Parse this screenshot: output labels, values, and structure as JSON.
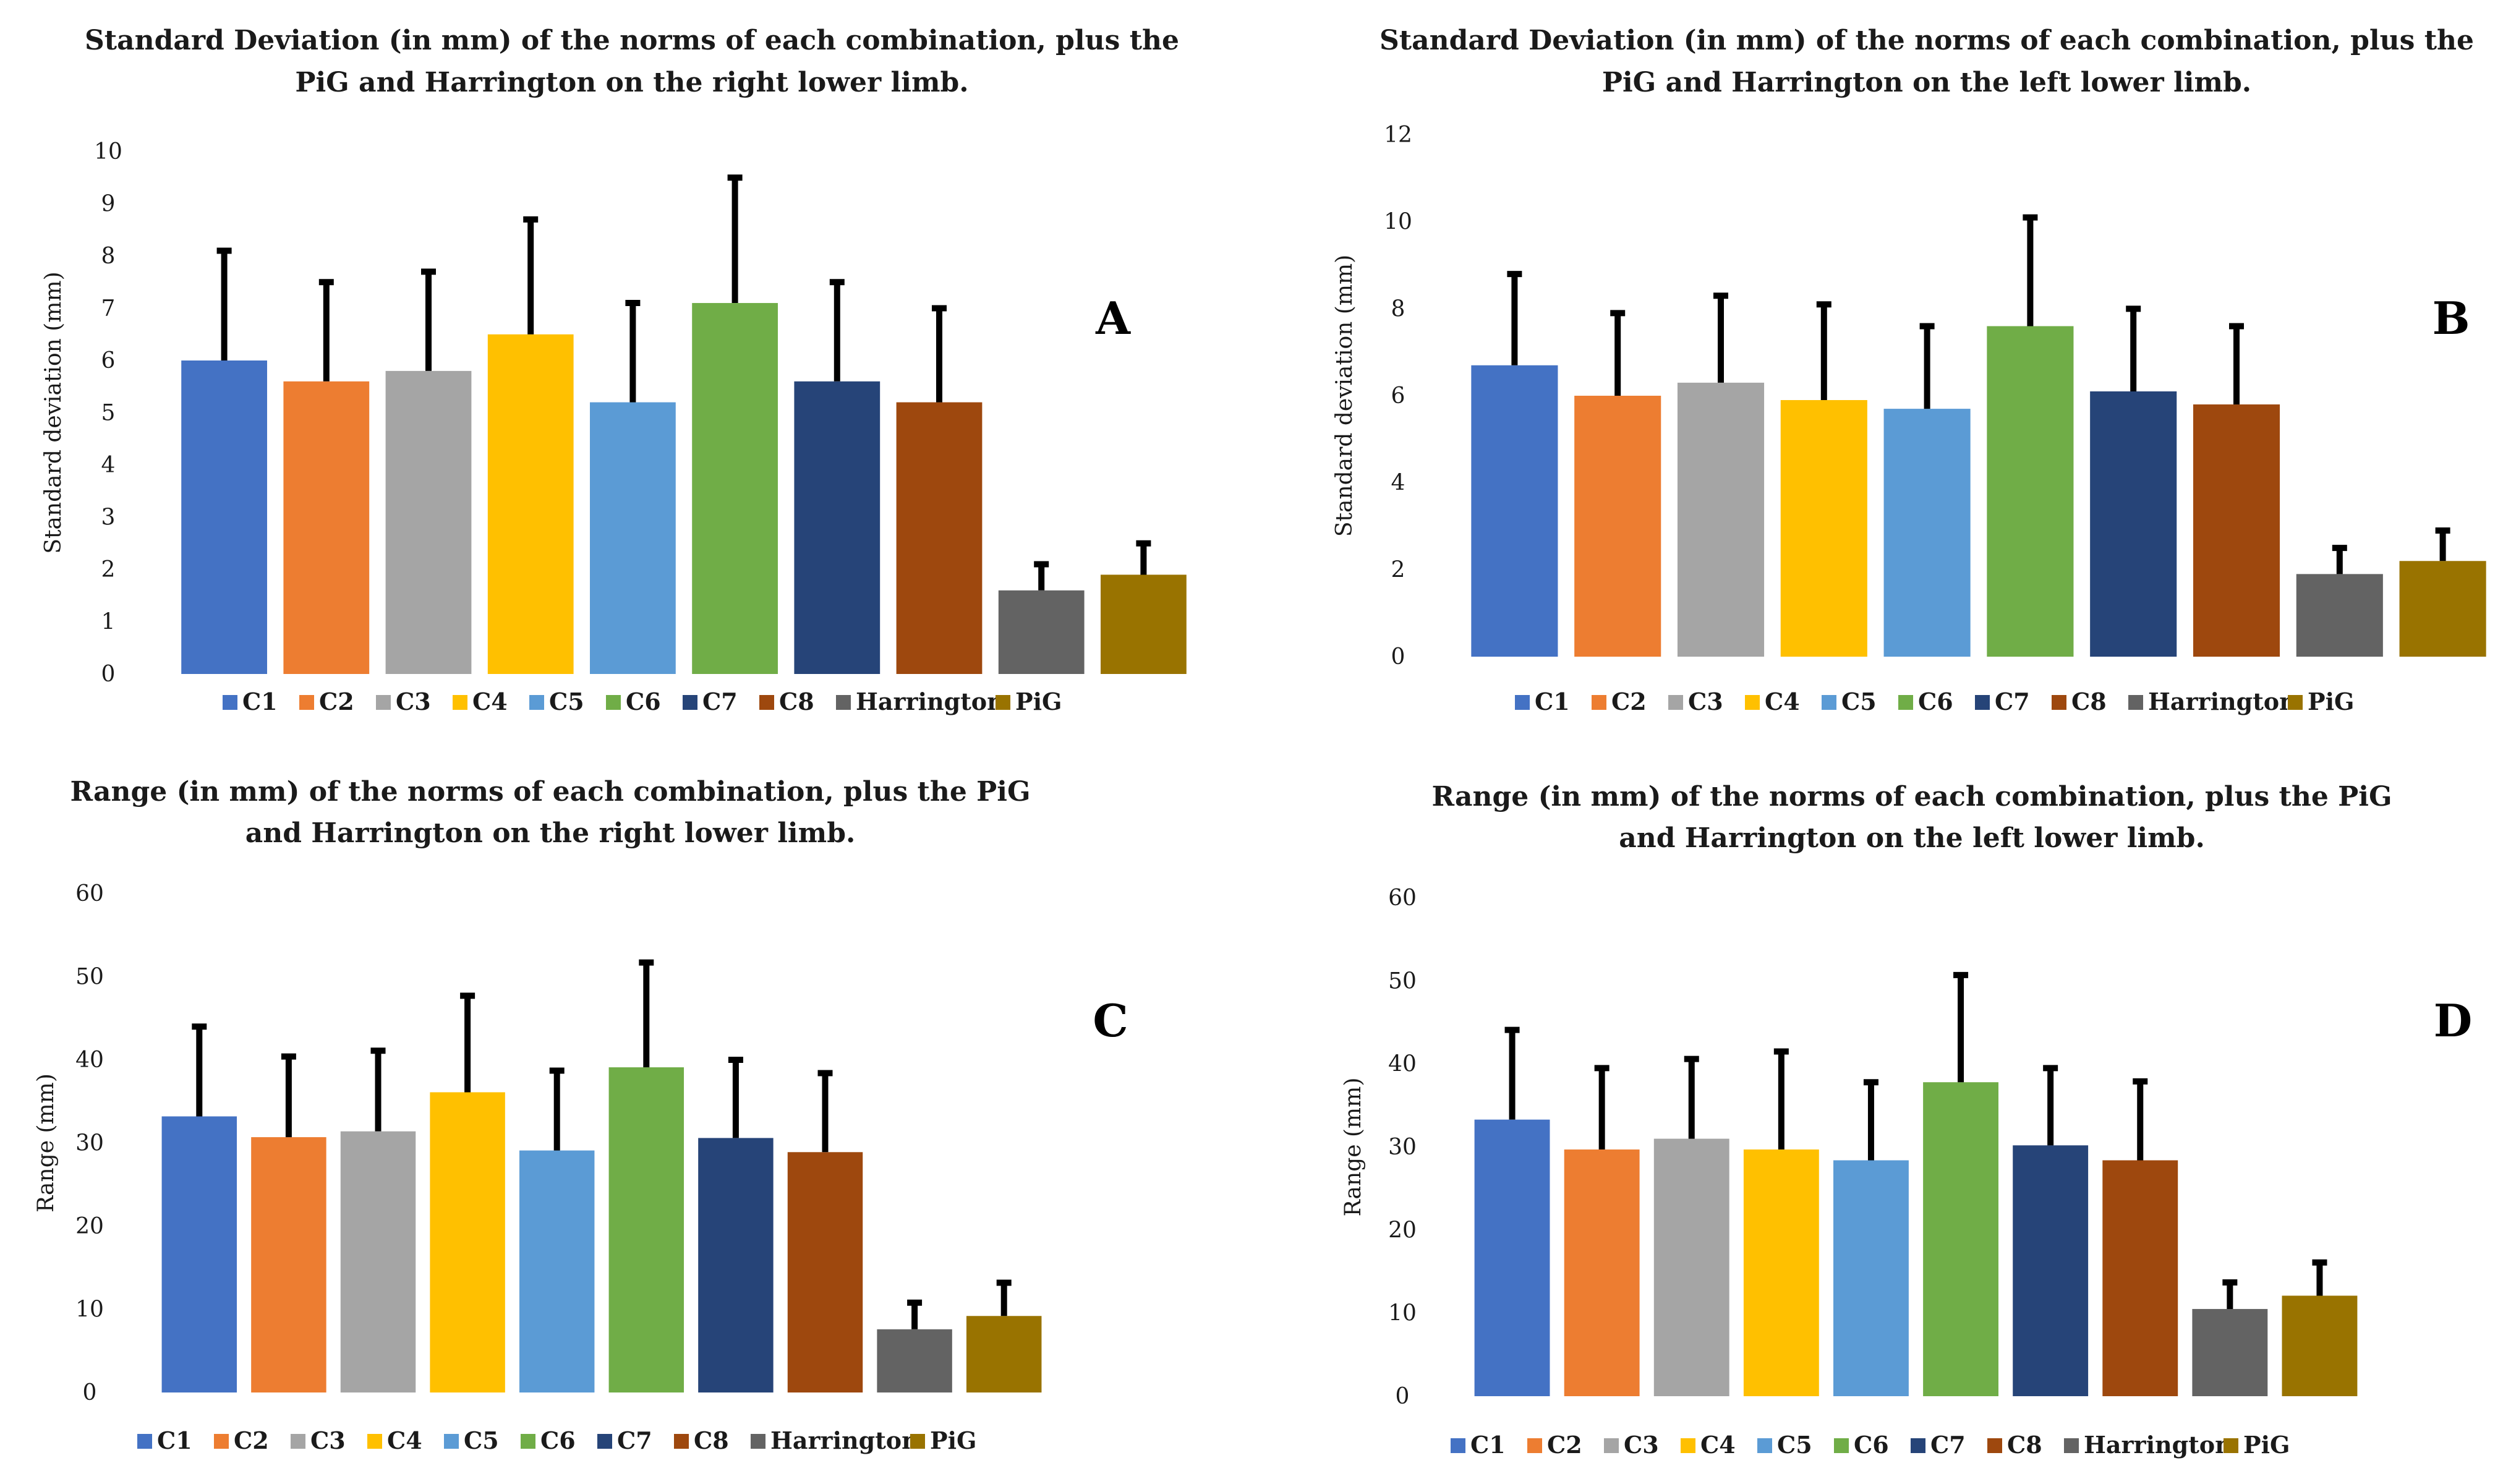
{
  "legend_labels": [
    "C1",
    "C2",
    "C3",
    "C4",
    "C5",
    "C6",
    "C7",
    "C8",
    "Harrington",
    "PiG"
  ],
  "colors": [
    "#4472C4",
    "#ED7D31",
    "#A5A5A5",
    "#FFC000",
    "#5B9BD5",
    "#70AD47",
    "#264478",
    "#9E480E",
    "#636363",
    "#997300"
  ],
  "chart_data": [
    {
      "id": "A",
      "type": "bar",
      "title_lines": [
        "Standard Deviation (in mm) of the norms of each combination, plus the",
        "PiG and Harrington on the right lower limb."
      ],
      "ylabel": "Standard deviation (mm)",
      "ylim": [
        0,
        10
      ],
      "yticks": [
        0,
        1,
        2,
        3,
        4,
        5,
        6,
        7,
        8,
        9,
        10
      ],
      "categories": [
        "C1",
        "C2",
        "C3",
        "C4",
        "C5",
        "C6",
        "C7",
        "C8",
        "Harrington",
        "PiG"
      ],
      "values": [
        6.0,
        5.6,
        5.8,
        6.5,
        5.2,
        7.1,
        5.6,
        5.2,
        1.6,
        1.9
      ],
      "error_plus": [
        2.1,
        1.9,
        1.9,
        2.2,
        1.9,
        2.4,
        1.9,
        1.8,
        0.5,
        0.6
      ],
      "letter": "A"
    },
    {
      "id": "B",
      "type": "bar",
      "title_lines": [
        "Standard Deviation (in mm) of the norms of each combination, plus the",
        "PiG and Harrington on the left lower limb."
      ],
      "ylabel": "Standard deviation (mm)",
      "ylim": [
        0,
        12
      ],
      "yticks": [
        0,
        2,
        4,
        6,
        8,
        10,
        12
      ],
      "categories": [
        "C1",
        "C2",
        "C3",
        "C4",
        "C5",
        "C6",
        "C7",
        "C8",
        "Harrington",
        "PiG"
      ],
      "values": [
        6.7,
        6.0,
        6.3,
        5.9,
        5.7,
        7.6,
        6.1,
        5.8,
        1.9,
        2.2
      ],
      "error_plus": [
        2.1,
        1.9,
        2.0,
        2.2,
        1.9,
        2.5,
        1.9,
        1.8,
        0.6,
        0.7
      ],
      "letter": "B"
    },
    {
      "id": "C",
      "type": "bar",
      "title_lines": [
        "Range (in mm) of the norms of each combination,  plus the PiG",
        "and Harrington on the right lower limb."
      ],
      "ylabel": "Range (mm)",
      "ylim": [
        0,
        60
      ],
      "yticks": [
        0,
        10,
        20,
        30,
        40,
        50,
        60
      ],
      "categories": [
        "C1",
        "C2",
        "C3",
        "C4",
        "C5",
        "C6",
        "C7",
        "C8",
        "Harrington",
        "PiG"
      ],
      "values": [
        33.2,
        30.7,
        31.4,
        36.1,
        29.1,
        39.1,
        30.6,
        28.9,
        7.6,
        9.2
      ],
      "error_plus": [
        10.8,
        9.7,
        9.7,
        11.6,
        9.6,
        12.6,
        9.4,
        9.5,
        3.2,
        4.0
      ],
      "letter": "C"
    },
    {
      "id": "D",
      "type": "bar",
      "title_lines": [
        "Range (in mm) of the norms of each combination, plus the PiG",
        "and Harrington on the left lower limb."
      ],
      "ylabel": "Range (mm)",
      "ylim": [
        0,
        60
      ],
      "yticks": [
        0,
        10,
        20,
        30,
        40,
        50,
        60
      ],
      "categories": [
        "C1",
        "C2",
        "C3",
        "C4",
        "C5",
        "C6",
        "C7",
        "C8",
        "Harrington",
        "PiG"
      ],
      "values": [
        33.3,
        29.7,
        31.0,
        29.7,
        28.4,
        37.8,
        30.2,
        28.4,
        10.5,
        12.1
      ],
      "error_plus": [
        10.8,
        9.8,
        9.6,
        11.8,
        9.4,
        12.9,
        9.3,
        9.5,
        3.2,
        4.0
      ],
      "letter": "D"
    }
  ]
}
